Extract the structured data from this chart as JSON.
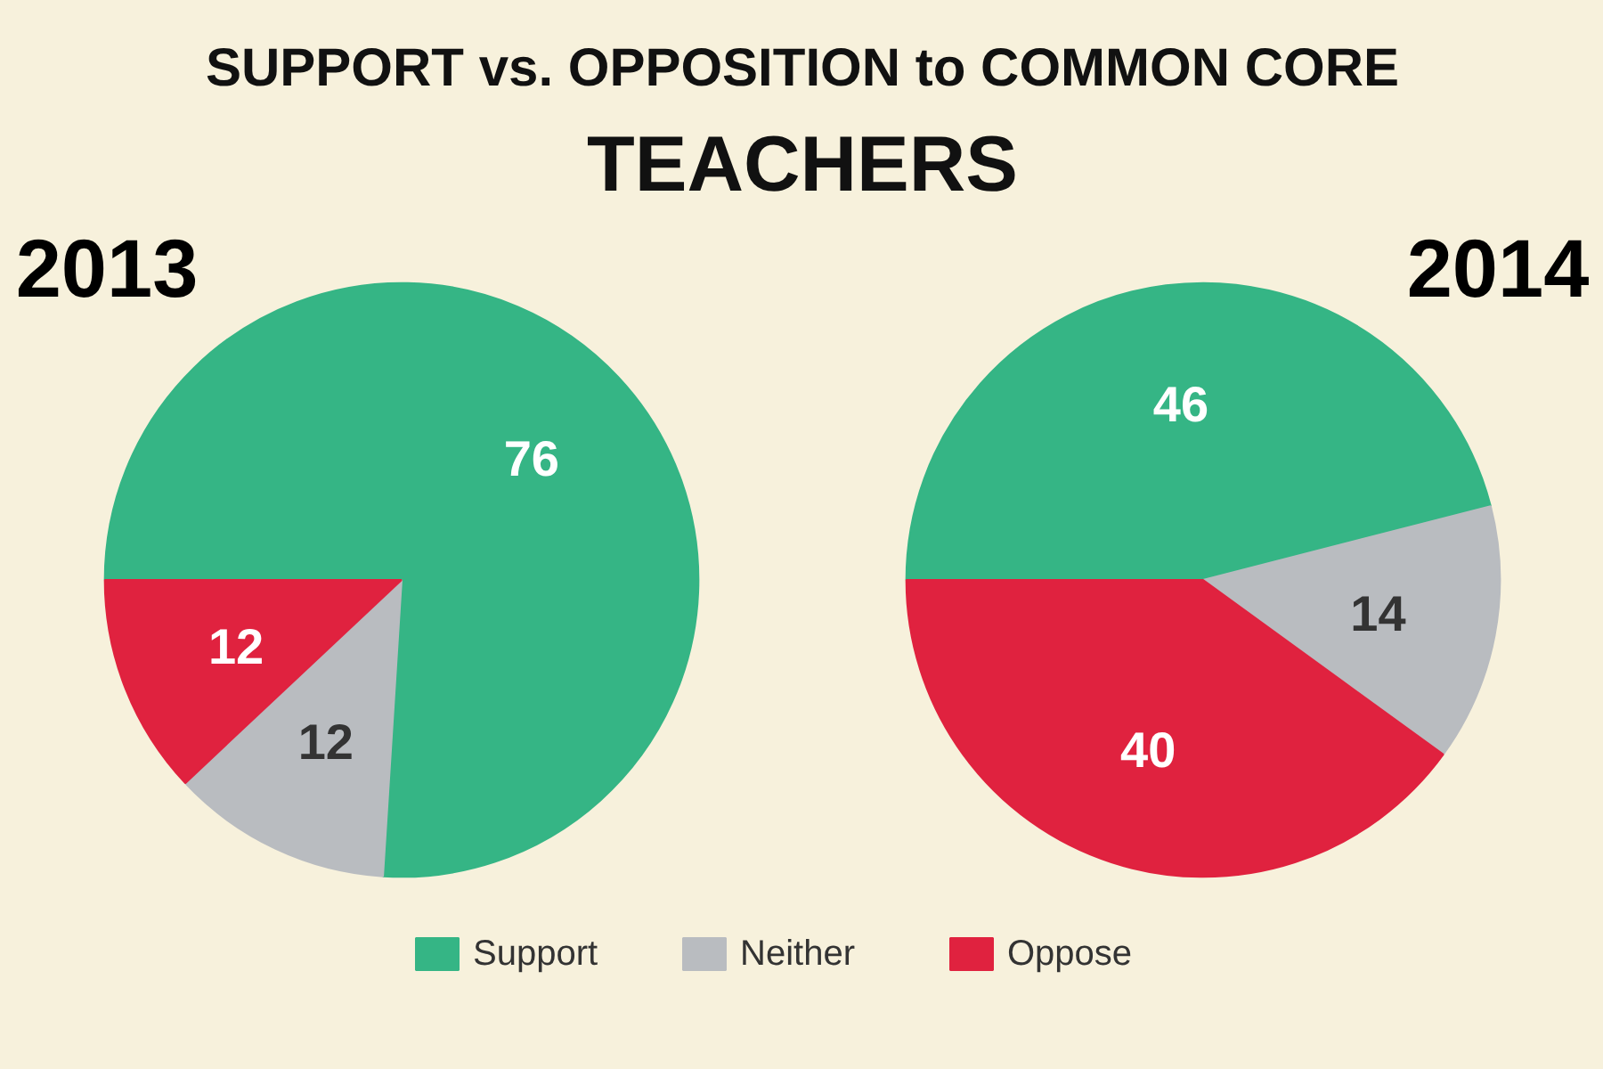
{
  "chart_data": [
    {
      "type": "other",
      "title": "SUPPORT vs. OPPOSITION to COMMON CORE",
      "subtitle": "TEACHERS"
    },
    {
      "type": "pie",
      "title": "2013",
      "categories": [
        "Support",
        "Neither",
        "Oppose"
      ],
      "values": [
        76,
        12,
        12
      ],
      "colors": [
        "#35b585",
        "#b9bcc0",
        "#e0223f"
      ],
      "data_labels": true,
      "legend": "bottom"
    },
    {
      "type": "pie",
      "title": "2014",
      "categories": [
        null,
        null,
        null
      ],
      "values": [
        46,
        14,
        40
      ],
      "colors": [
        "#35b585",
        "#b9bcc0",
        "#e0223f"
      ],
      "data_labels": true
    }
  ]
}
